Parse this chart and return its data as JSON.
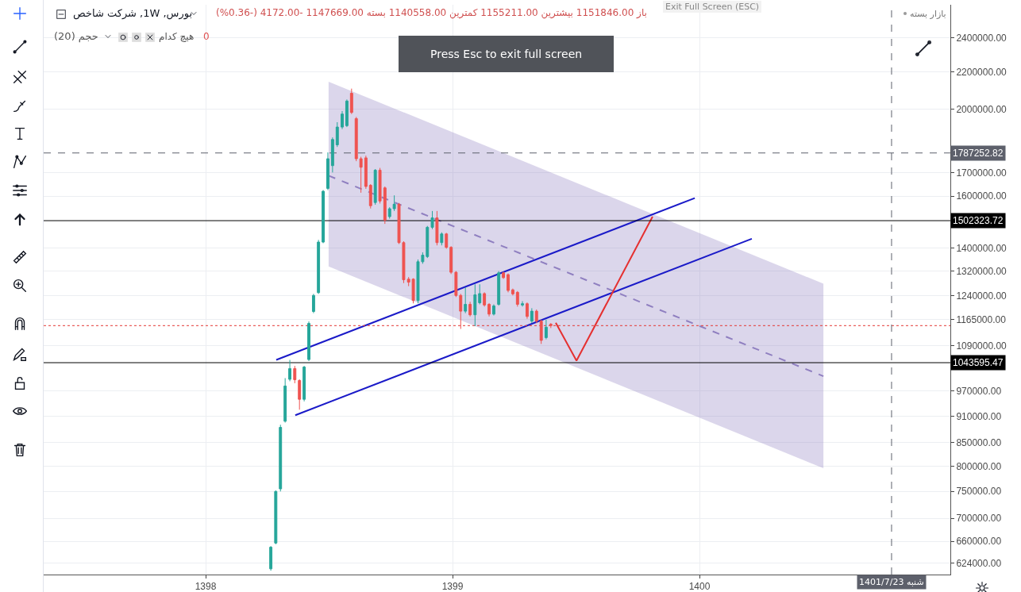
{
  "chart_data": {
    "type": "candlestick",
    "title": "بورس, 1W, شرکت شاخص",
    "subtitle": "باز 1151846.00 بیشترین 1155211.00 کمترین 1140558.00 بسته 1147669.00 -4172.00 (-0.36%)",
    "annotations": [
      "حجم (20)",
      "هیچ کدام",
      "0",
      "بازار بسته",
      "Press Esc to exit full screen",
      "Exit Full Screen (ESC)"
    ],
    "x": [
      1398.264,
      1398.284,
      1398.303,
      1398.322,
      1398.341,
      1398.361,
      1398.38,
      1398.399,
      1398.418,
      1398.437,
      1398.457,
      1398.476,
      1398.495,
      1398.514,
      1398.533,
      1398.553,
      1398.572,
      1398.591,
      1398.61,
      1398.629,
      1398.649,
      1398.668,
      1398.687,
      1398.706,
      1398.726,
      1398.745,
      1398.764,
      1398.783,
      1398.802,
      1398.822,
      1398.841,
      1398.86,
      1398.879,
      1398.898,
      1398.918,
      1398.937,
      1398.956,
      1398.975,
      1398.994,
      1399.014,
      1399.033,
      1399.052,
      1399.071,
      1399.091,
      1399.11,
      1399.129,
      1399.148,
      1399.167,
      1399.187,
      1399.206,
      1399.225,
      1399.244,
      1399.263,
      1399.283,
      1399.302,
      1399.321,
      1399.34,
      1399.359,
      1399.379,
      1399.398
    ],
    "ohlc": [
      [
        615000,
        652000,
        612000,
        650000
      ],
      [
        657000,
        752000,
        655000,
        750000
      ],
      [
        755000,
        890000,
        750000,
        884000
      ],
      [
        898000,
        1003000,
        895000,
        983000
      ],
      [
        1000000,
        1051000,
        995000,
        1028000
      ],
      [
        1028000,
        1035000,
        990000,
        999000
      ],
      [
        997000,
        1000000,
        925000,
        950000
      ],
      [
        950000,
        1035000,
        945000,
        1032000
      ],
      [
        1052000,
        1160000,
        1048000,
        1154000
      ],
      [
        1190000,
        1245000,
        1185000,
        1240000
      ],
      [
        1249000,
        1430000,
        1245000,
        1422000
      ],
      [
        1422000,
        1625000,
        1418000,
        1620000
      ],
      [
        1632000,
        1790000,
        1625000,
        1761000
      ],
      [
        1730000,
        1860000,
        1700000,
        1850000
      ],
      [
        1825000,
        1934000,
        1815000,
        1910000
      ],
      [
        1910000,
        1990000,
        1900000,
        1975000
      ],
      [
        1917000,
        2050000,
        1910000,
        2042000
      ],
      [
        2083000,
        2108000,
        1975000,
        1983000
      ],
      [
        1952000,
        1960000,
        1750000,
        1761000
      ],
      [
        1761000,
        1770000,
        1614000,
        1723000
      ],
      [
        1765000,
        1775000,
        1630000,
        1640000
      ],
      [
        1645000,
        1650000,
        1550000,
        1561000
      ],
      [
        1574000,
        1715000,
        1565000,
        1710000
      ],
      [
        1710000,
        1720000,
        1570000,
        1580000
      ],
      [
        1634000,
        1640000,
        1490000,
        1504000
      ],
      [
        1518000,
        1555000,
        1510000,
        1549000
      ],
      [
        1549000,
        1603000,
        1540000,
        1567000
      ],
      [
        1567000,
        1572000,
        1415000,
        1420000
      ],
      [
        1420000,
        1425000,
        1280000,
        1291000
      ],
      [
        1293000,
        1300000,
        1270000,
        1283000
      ],
      [
        1293000,
        1296000,
        1215000,
        1224000
      ],
      [
        1224000,
        1360000,
        1215000,
        1352000
      ],
      [
        1352000,
        1385000,
        1345000,
        1375000
      ],
      [
        1370000,
        1482000,
        1365000,
        1477000
      ],
      [
        1477000,
        1540000,
        1470000,
        1513000
      ],
      [
        1513000,
        1540000,
        1410000,
        1420000
      ],
      [
        1420000,
        1458000,
        1410000,
        1452000
      ],
      [
        1452000,
        1456000,
        1398000,
        1403000
      ],
      [
        1403000,
        1407000,
        1310000,
        1316000
      ],
      [
        1316000,
        1320000,
        1235000,
        1240000
      ],
      [
        1240000,
        1245000,
        1138000,
        1191000
      ],
      [
        1191000,
        1266000,
        1185000,
        1212000
      ],
      [
        1212000,
        1220000,
        1175000,
        1180000
      ],
      [
        1180000,
        1276000,
        1146000,
        1242000
      ],
      [
        1217000,
        1276000,
        1212000,
        1246000
      ],
      [
        1246000,
        1250000,
        1205000,
        1210000
      ],
      [
        1212000,
        1216000,
        1175000,
        1182000
      ],
      [
        1182000,
        1212000,
        1178000,
        1207000
      ],
      [
        1212000,
        1320000,
        1208000,
        1314000
      ],
      [
        1314000,
        1318000,
        1294000,
        1298000
      ],
      [
        1308000,
        1312000,
        1250000,
        1256000
      ],
      [
        1258000,
        1262000,
        1240000,
        1245000
      ],
      [
        1250000,
        1254000,
        1205000,
        1212000
      ],
      [
        1210000,
        1222000,
        1205000,
        1214000
      ],
      [
        1214000,
        1218000,
        1168000,
        1175000
      ],
      [
        1161000,
        1200000,
        1155000,
        1191000
      ],
      [
        1191000,
        1196000,
        1155000,
        1161000
      ],
      [
        1161000,
        1165000,
        1095000,
        1105000
      ],
      [
        1113000,
        1165000,
        1108000,
        1143000
      ],
      [
        1151846,
        1155211,
        1140558,
        1147669
      ]
    ],
    "colors": [
      "#26a69a",
      "#26a69a",
      "#26a69a",
      "#26a69a",
      "#26a69a",
      "#ef5350",
      "#ef5350",
      "#26a69a",
      "#26a69a",
      "#26a69a",
      "#26a69a",
      "#26a69a",
      "#26a69a",
      "#26a69a",
      "#26a69a",
      "#26a69a",
      "#26a69a",
      "#ef5350",
      "#ef5350",
      "#ef5350",
      "#ef5350",
      "#ef5350",
      "#26a69a",
      "#ef5350",
      "#ef5350",
      "#26a69a",
      "#26a69a",
      "#ef5350",
      "#ef5350",
      "#ef5350",
      "#ef5350",
      "#26a69a",
      "#26a69a",
      "#26a69a",
      "#26a69a",
      "#ef5350",
      "#26a69a",
      "#ef5350",
      "#ef5350",
      "#ef5350",
      "#ef5350",
      "#26a69a",
      "#ef5350",
      "#26a69a",
      "#26a69a",
      "#ef5350",
      "#ef5350",
      "#26a69a",
      "#26a69a",
      "#ef5350",
      "#ef5350",
      "#ef5350",
      "#ef5350",
      "#26a69a",
      "#ef5350",
      "#26a69a",
      "#ef5350",
      "#ef5350",
      "#26a69a",
      "#ef5350"
    ],
    "series": [
      {
        "type": "line",
        "line_style": "dashed",
        "color": "#8f7fc0",
        "x": [
          1398.498,
          1400.502
        ],
        "values": [
          1686000,
          1008000
        ],
        "lower": [
          1336000,
          796000
        ],
        "upper": [
          2146000,
          1278000
        ]
      },
      {
        "type": "line",
        "color": "#1a1ac8",
        "x": [
          1398.286,
          1399.981
        ],
        "values": [
          1051000,
          1592000
        ]
      },
      {
        "type": "line",
        "color": "#1a1ac8",
        "x": [
          1398.363,
          1400.212
        ],
        "values": [
          912000,
          1434000
        ]
      },
      {
        "type": "line",
        "color": "#e53030",
        "x": [
          1399.418,
          1399.502,
          1399.81
        ],
        "values": [
          1156000,
          1049000,
          1518000
        ]
      }
    ],
    "ref_lines": [
      {
        "axis": "y",
        "value": 1787252.82,
        "label": "1787252.82",
        "line_style": "dashed",
        "color": "#5d606b"
      },
      {
        "axis": "y",
        "value": 1502323.72,
        "label": "1502323.72",
        "color": "#000000"
      },
      {
        "axis": "y",
        "value": 1043595.47,
        "label": "1043595.47",
        "color": "#000000"
      },
      {
        "axis": "y",
        "value": 1147669,
        "line_style": "dotted",
        "color": "#e53935"
      },
      {
        "axis": "x",
        "value": 1400.778,
        "label": "شنبه 1401/7/23",
        "line_style": "dashed",
        "color": "#5d606b"
      }
    ],
    "xlim": [
      1397.344,
      1401.016
    ],
    "xticks": [
      1398,
      1399,
      1400
    ],
    "ylim": [
      606000,
      2614000
    ],
    "yticks": [
      {
        "value": 624000,
        "label": "624000.00"
      },
      {
        "value": 660000,
        "label": "660000.00"
      },
      {
        "value": 700000,
        "label": "700000.00"
      },
      {
        "value": 750000,
        "label": "750000.00"
      },
      {
        "value": 800000,
        "label": "800000.00"
      },
      {
        "value": 850000,
        "label": "850000.00"
      },
      {
        "value": 910000,
        "label": "910000.00"
      },
      {
        "value": 970000,
        "label": "970000.00"
      },
      {
        "value": 1090000,
        "label": "1090000.00"
      },
      {
        "value": 1165000,
        "label": "1165000.00"
      },
      {
        "value": 1240000,
        "label": "1240000.00"
      },
      {
        "value": 1320000,
        "label": "1320000.00"
      },
      {
        "value": 1400000,
        "label": "1400000.00"
      },
      {
        "value": 1600000,
        "label": "1600000.00"
      },
      {
        "value": 1700000,
        "label": "1700000.00"
      },
      {
        "value": 2000000,
        "label": "2000000.00"
      },
      {
        "value": 2200000,
        "label": "2200000.00"
      },
      {
        "value": 2400000,
        "label": "2400000.00"
      }
    ],
    "log": true,
    "grid": true
  }
}
